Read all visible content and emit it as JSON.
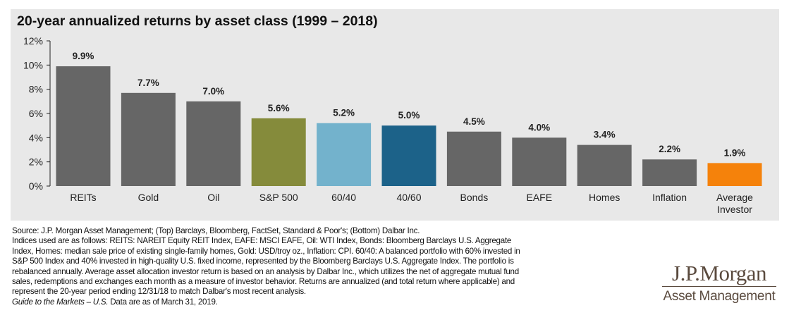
{
  "chart_data": {
    "type": "bar",
    "title": "20-year annualized returns by asset class (1999 – 2018)",
    "categories": [
      "REITs",
      "Gold",
      "Oil",
      "S&P 500",
      "60/40",
      "40/60",
      "Bonds",
      "EAFE",
      "Homes",
      "Inflation",
      "Average Investor"
    ],
    "values": [
      9.9,
      7.7,
      7.0,
      5.6,
      5.2,
      5.0,
      4.5,
      4.0,
      3.4,
      2.2,
      1.9
    ],
    "data_labels": [
      "9.9%",
      "7.7%",
      "7.0%",
      "5.6%",
      "5.2%",
      "5.0%",
      "4.5%",
      "4.0%",
      "3.4%",
      "2.2%",
      "1.9%"
    ],
    "colors": [
      "#666666",
      "#666666",
      "#666666",
      "#858b3b",
      "#73b2cc",
      "#1c6289",
      "#666666",
      "#666666",
      "#666666",
      "#666666",
      "#f5820b"
    ],
    "ylim": [
      0,
      12
    ],
    "yticks": [
      "0%",
      "2%",
      "4%",
      "6%",
      "8%",
      "10%",
      "12%"
    ],
    "xlabel": "",
    "ylabel": "",
    "grid": false
  },
  "footnotes": [
    "Source: J.P. Morgan Asset Management; (Top) Barclays, Bloomberg, FactSet, Standard & Poor's; (Bottom) Dalbar Inc.",
    "Indices used are as follows: REITS: NAREIT Equity REIT Index, EAFE: MSCI EAFE, Oil: WTI Index, Bonds: Bloomberg Barclays U.S. Aggregate",
    "Index, Homes: median sale price of existing single-family homes, Gold: USD/troy oz., Inflation: CPI. 60/40: A balanced portfolio with 60% invested in",
    "S&P 500 Index and 40% invested in high-quality U.S. fixed income, represented by the Bloomberg Barclays U.S. Aggregate Index. The portfolio is",
    "rebalanced annually. Average asset allocation investor return is based on an analysis by Dalbar Inc., which utilizes the net of aggregate mutual fund",
    "sales, redemptions and exchanges each month as a measure of investor behavior. Returns are annualized (and total return where applicable) and",
    "represent the 20-year period ending 12/31/18 to match Dalbar's most recent analysis."
  ],
  "footnote_last": {
    "italic": "Guide to the Markets – U.S.",
    "rest": " Data are as of March 31, 2019."
  },
  "logo": {
    "line1": "J.P.Morgan",
    "line2": "Asset Management"
  }
}
